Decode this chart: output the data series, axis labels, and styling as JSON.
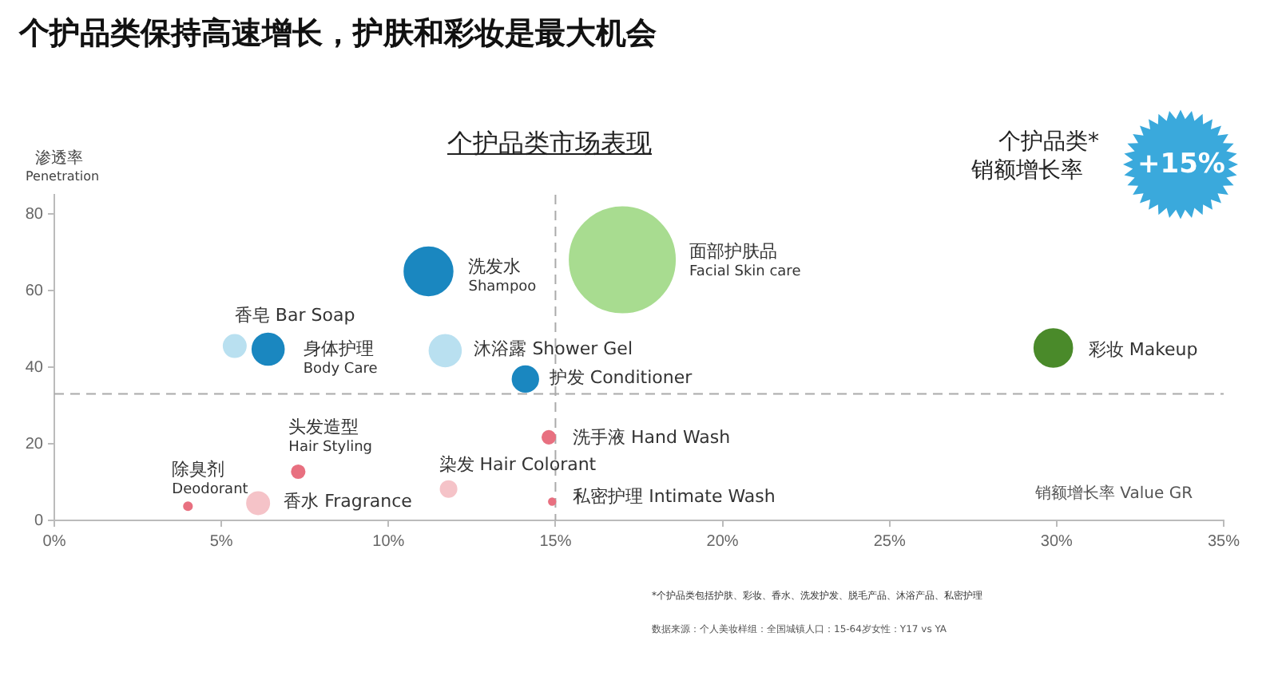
{
  "chart_data": {
    "type": "bubble",
    "title": "个护品类保持高速增长，护肤和彩妆是最大机会",
    "subtitle": "个护品类市场表现",
    "xlabel": "销额增长率 Value GR",
    "ylabel": "渗透率\nPenetration",
    "xlim": [
      0,
      35
    ],
    "xticks": [
      {
        "value": 0,
        "label": "0%"
      },
      {
        "value": 5,
        "label": "5%"
      },
      {
        "value": 10,
        "label": "10%"
      },
      {
        "value": 15,
        "label": "15%"
      },
      {
        "value": 20,
        "label": "20%"
      },
      {
        "value": 25,
        "label": "25%"
      },
      {
        "value": 30,
        "label": "30%"
      },
      {
        "value": 35,
        "label": "35%"
      }
    ],
    "ylim": [
      0,
      85
    ],
    "yticks": [
      0,
      20,
      40,
      60,
      80
    ],
    "grid": false,
    "legend": false,
    "ref_lines": [
      {
        "axis": "x",
        "value": 15,
        "color": "#aaaaaa",
        "line_style": "dashed"
      },
      {
        "axis": "y",
        "value": 33,
        "color": "#aaaaaa",
        "line_style": "dashed"
      }
    ],
    "series": [
      {
        "name": "洗发水\nShampoo",
        "color": "#1a87c0",
        "x": [
          11.2
        ],
        "values": [
          65
        ],
        "sizes": [
          0.21
        ]
      },
      {
        "name": "面部护肤品\nFacial Skin care",
        "color": "#a8dc90",
        "x": [
          17.0
        ],
        "values": [
          68
        ],
        "sizes": [
          1
        ]
      },
      {
        "name": "彩妆 Makeup",
        "color": "#4a8a2a",
        "x": [
          29.9
        ],
        "values": [
          45
        ],
        "sizes": [
          0.13
        ]
      },
      {
        "name": "香皂 Bar Soap",
        "color": "#b9e0f0",
        "x": [
          5.4
        ],
        "values": [
          45.5
        ],
        "sizes": [
          0.045
        ]
      },
      {
        "name": "身体护理\nBody Care",
        "color": "#1a87c0",
        "x": [
          6.4
        ],
        "values": [
          44.7
        ],
        "sizes": [
          0.09
        ]
      },
      {
        "name": "沐浴露 Shower Gel",
        "color": "#b9e0f0",
        "x": [
          11.7
        ],
        "values": [
          44.3
        ],
        "sizes": [
          0.09
        ]
      },
      {
        "name": "护发 Conditioner",
        "color": "#1a87c0",
        "x": [
          14.1
        ],
        "values": [
          36.9
        ],
        "sizes": [
          0.06
        ]
      },
      {
        "name": "洗手液 Hand Wash",
        "color": "#e87080",
        "x": [
          14.8
        ],
        "values": [
          21.7
        ],
        "sizes": [
          0.015
        ]
      },
      {
        "name": "头发造型\nHair Styling",
        "color": "#e87080",
        "x": [
          7.3
        ],
        "values": [
          12.7
        ],
        "sizes": [
          0.015
        ]
      },
      {
        "name": "染发 Hair Colorant",
        "color": "#f5c3c8",
        "x": [
          11.8
        ],
        "values": [
          8.2
        ],
        "sizes": [
          0.023
        ]
      },
      {
        "name": "除臭剂\nDeodorant",
        "color": "#e87080",
        "x": [
          4.0
        ],
        "values": [
          3.7
        ],
        "sizes": [
          0.006
        ]
      },
      {
        "name": "香水 Fragrance",
        "color": "#f5c3c8",
        "x": [
          6.1
        ],
        "values": [
          4.5
        ],
        "sizes": [
          0.045
        ]
      },
      {
        "name": "私密护理 Intimate Wash",
        "color": "#e87080",
        "x": [
          14.9
        ],
        "values": [
          4.9
        ],
        "sizes": [
          0.004
        ]
      }
    ],
    "annotations": [
      "个护品类*",
      "销额增长率",
      "+15%",
      "*个护品类包括护肤、彩妆、香水、洗发护发、脱毛产品、沐浴产品、私密护理",
      "数据来源：个人美妆样组：全国城镇人口：15-64岁女性：Y17 vs YA"
    ]
  }
}
